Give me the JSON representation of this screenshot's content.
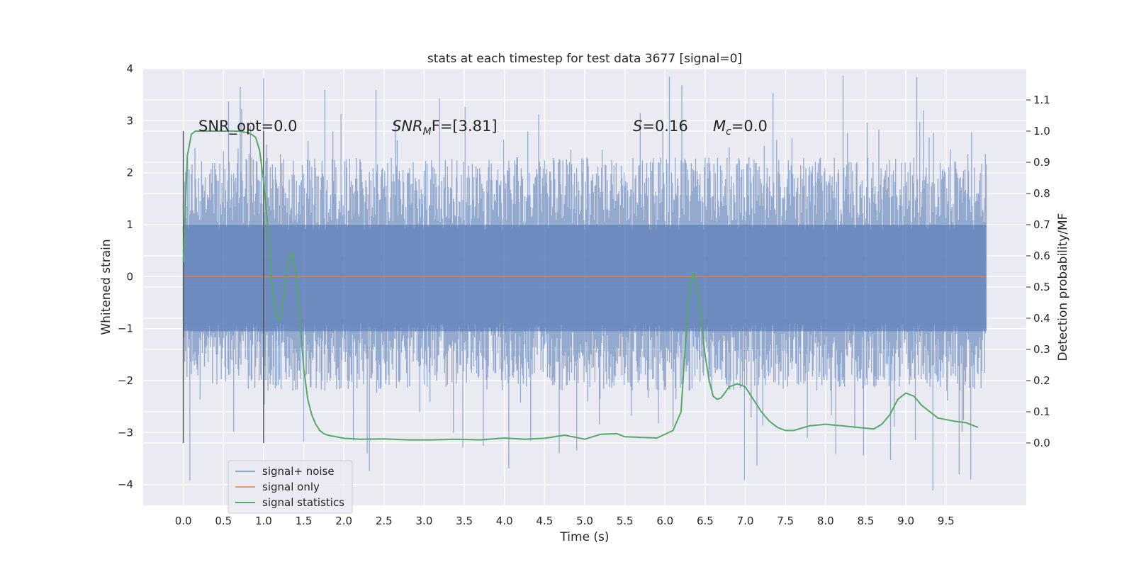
{
  "chart_data": {
    "type": "line",
    "title": "stats at each timestep for test data 3677 [signal=0]",
    "xlabel": "Time (s)",
    "ylabel": "Whitened strain",
    "ylabel_right": "Detection probability/MF",
    "xlim": [
      -0.5,
      10.5
    ],
    "ylim": [
      -4.4,
      4.0
    ],
    "ylim_right": [
      -0.2,
      1.2
    ],
    "x_ticks": [
      0.0,
      0.5,
      1.0,
      1.5,
      2.0,
      2.5,
      3.0,
      3.5,
      4.0,
      4.5,
      5.0,
      5.5,
      6.0,
      6.5,
      7.0,
      7.5,
      8.0,
      8.5,
      9.0,
      9.5
    ],
    "x_tick_labels": [
      "0.0",
      "0.5",
      "1.0",
      "1.5",
      "2.0",
      "2.5",
      "3.0",
      "3.5",
      "4.0",
      "4.5",
      "5.0",
      "5.5",
      "6.0",
      "6.5",
      "7.0",
      "7.5",
      "8.0",
      "8.5",
      "9.0",
      "9.5"
    ],
    "y_ticks": [
      -4,
      -3,
      -2,
      -1,
      0,
      1,
      2,
      3,
      4
    ],
    "y_tick_labels": [
      "−4",
      "−3",
      "−2",
      "−1",
      "0",
      "1",
      "2",
      "3",
      "4"
    ],
    "y_ticks_right": [
      0.0,
      0.1,
      0.2,
      0.3,
      0.4,
      0.5,
      0.6,
      0.7,
      0.8,
      0.9,
      1.0,
      1.1
    ],
    "y_tick_labels_right": [
      "0.0",
      "0.1",
      "0.2",
      "0.3",
      "0.4",
      "0.5",
      "0.6",
      "0.7",
      "0.8",
      "0.9",
      "1.0",
      "1.1"
    ],
    "annotations": {
      "snr_opt": "SNR_opt=0.0",
      "snr_mf_italic": "SNR",
      "snr_mf_sub": "M",
      "snr_mf_rest": "F=[3.81]",
      "s_italic": "S",
      "s_rest": "=0.16",
      "mc_italic": "M",
      "mc_sub": "c",
      "mc_rest": "=0.0"
    },
    "markers": {
      "vertical_lines_x": [
        0.0,
        1.0
      ],
      "vertical_line_ymin": -3.2,
      "vertical_line_ymax": 2.8
    },
    "series": [
      {
        "name": "signal+ noise",
        "axis": "left",
        "noise_envelope": {
          "x_range": [
            0.0,
            10.0
          ],
          "typical_low": -1.5,
          "typical_high": 1.6,
          "min": -4.05,
          "max": 3.65
        }
      },
      {
        "name": "signal only",
        "axis": "left",
        "x": [
          0.0,
          10.0
        ],
        "y": [
          0.0,
          0.0
        ]
      },
      {
        "name": "signal statistics",
        "axis": "right",
        "x": [
          0.0,
          0.05,
          0.1,
          0.15,
          0.2,
          0.3,
          0.4,
          0.5,
          0.6,
          0.7,
          0.8,
          0.85,
          0.9,
          0.95,
          1.0,
          1.05,
          1.1,
          1.15,
          1.2,
          1.25,
          1.3,
          1.35,
          1.4,
          1.45,
          1.5,
          1.55,
          1.6,
          1.65,
          1.7,
          1.75,
          1.8,
          1.9,
          2.0,
          2.2,
          2.5,
          2.8,
          3.1,
          3.4,
          3.7,
          4.0,
          4.25,
          4.5,
          4.75,
          4.85,
          5.0,
          5.2,
          5.4,
          5.5,
          5.7,
          5.9,
          6.1,
          6.2,
          6.25,
          6.3,
          6.35,
          6.4,
          6.45,
          6.5,
          6.55,
          6.6,
          6.65,
          6.7,
          6.8,
          6.9,
          7.0,
          7.1,
          7.2,
          7.3,
          7.4,
          7.5,
          7.6,
          7.8,
          8.0,
          8.2,
          8.4,
          8.6,
          8.7,
          8.8,
          8.9,
          9.0,
          9.1,
          9.2,
          9.4,
          9.6,
          9.75,
          9.9
        ],
        "y": [
          0.58,
          0.92,
          0.99,
          1.0,
          1.0,
          1.0,
          1.0,
          1.0,
          1.0,
          1.0,
          0.995,
          0.99,
          0.98,
          0.94,
          0.84,
          0.7,
          0.52,
          0.41,
          0.39,
          0.47,
          0.57,
          0.61,
          0.55,
          0.4,
          0.24,
          0.14,
          0.09,
          0.06,
          0.04,
          0.03,
          0.025,
          0.02,
          0.015,
          0.012,
          0.013,
          0.01,
          0.01,
          0.012,
          0.01,
          0.016,
          0.012,
          0.015,
          0.025,
          0.02,
          0.012,
          0.028,
          0.03,
          0.02,
          0.018,
          0.016,
          0.04,
          0.1,
          0.3,
          0.48,
          0.55,
          0.5,
          0.4,
          0.28,
          0.2,
          0.15,
          0.14,
          0.145,
          0.18,
          0.19,
          0.18,
          0.14,
          0.1,
          0.07,
          0.05,
          0.04,
          0.04,
          0.055,
          0.06,
          0.055,
          0.05,
          0.045,
          0.06,
          0.09,
          0.14,
          0.16,
          0.15,
          0.12,
          0.08,
          0.07,
          0.065,
          0.05
        ]
      }
    ],
    "legend": {
      "position": "lower-left",
      "entries": [
        "signal+ noise",
        "signal only",
        "signal statistics"
      ]
    },
    "colors": {
      "background": "#eaeaf2",
      "grid": "#ffffff",
      "noise": "#4c72b0",
      "signal_only": "#dd8452",
      "statistics": "#55a868",
      "marker_line": "#555555",
      "text": "#262626"
    }
  }
}
